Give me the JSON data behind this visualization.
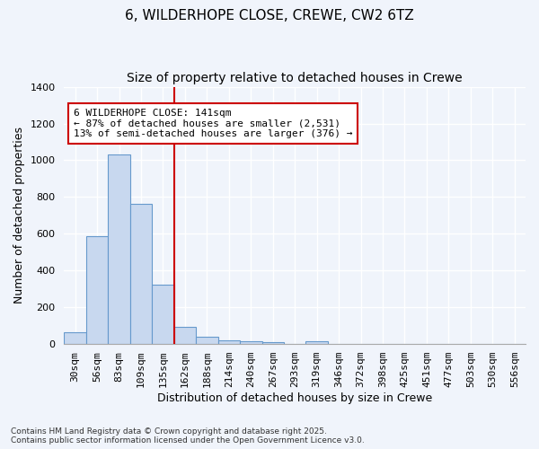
{
  "title1": "6, WILDERHOPE CLOSE, CREWE, CW2 6TZ",
  "title2": "Size of property relative to detached houses in Crewe",
  "xlabel": "Distribution of detached houses by size in Crewe",
  "ylabel": "Number of detached properties",
  "categories": [
    "30sqm",
    "56sqm",
    "83sqm",
    "109sqm",
    "135sqm",
    "162sqm",
    "188sqm",
    "214sqm",
    "240sqm",
    "267sqm",
    "293sqm",
    "319sqm",
    "346sqm",
    "372sqm",
    "398sqm",
    "425sqm",
    "451sqm",
    "477sqm",
    "503sqm",
    "530sqm",
    "556sqm"
  ],
  "values": [
    65,
    585,
    1030,
    765,
    325,
    95,
    40,
    22,
    15,
    13,
    0,
    15,
    0,
    0,
    0,
    0,
    0,
    0,
    0,
    0,
    0
  ],
  "bar_color": "#c8d8ef",
  "bar_edge_color": "#6699cc",
  "vline_color": "#cc0000",
  "vline_x_index": 4,
  "annotation_text": "6 WILDERHOPE CLOSE: 141sqm\n← 87% of detached houses are smaller (2,531)\n13% of semi-detached houses are larger (376) →",
  "annotation_box_color": "#ffffff",
  "annotation_box_edge": "#cc0000",
  "ylim": [
    0,
    1400
  ],
  "yticks": [
    0,
    200,
    400,
    600,
    800,
    1000,
    1200,
    1400
  ],
  "footnote": "Contains HM Land Registry data © Crown copyright and database right 2025.\nContains public sector information licensed under the Open Government Licence v3.0.",
  "bg_color": "#f0f4fb",
  "grid_color": "#ffffff",
  "title_fontsize": 11,
  "subtitle_fontsize": 10,
  "label_fontsize": 9,
  "tick_fontsize": 8,
  "annot_fontsize": 8
}
